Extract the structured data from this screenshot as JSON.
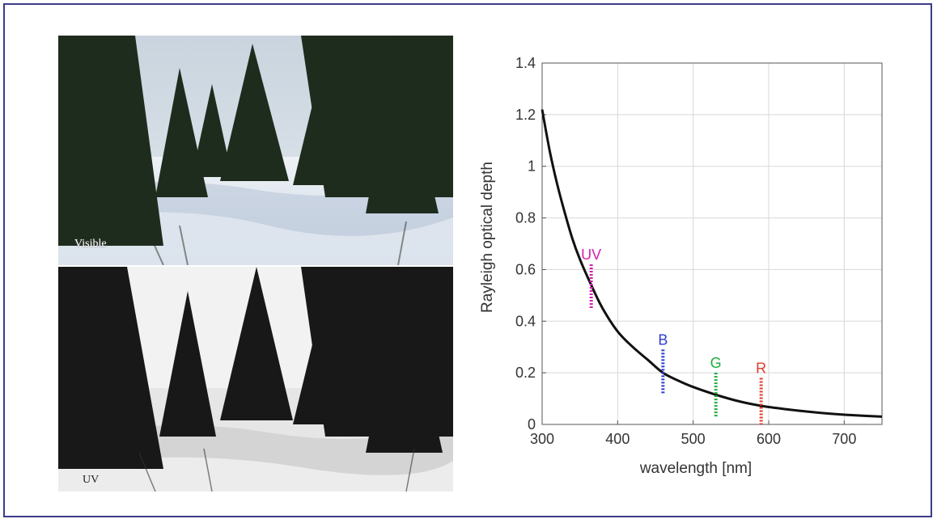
{
  "photos": [
    {
      "label": "Visible",
      "mode": "visible"
    },
    {
      "label": "UV",
      "mode": "uv"
    }
  ],
  "chart_data": {
    "type": "line",
    "title": "",
    "xlabel": "wavelength [nm]",
    "ylabel": "Rayleigh optical depth",
    "xlim": [
      300,
      750
    ],
    "ylim": [
      0,
      1.4
    ],
    "xticks": [
      300,
      400,
      500,
      600,
      700
    ],
    "yticks": [
      0,
      0.2,
      0.4,
      0.6,
      0.8,
      1,
      1.2,
      1.4
    ],
    "grid": true,
    "curve": {
      "x": [
        300,
        310,
        320,
        330,
        340,
        350,
        365,
        380,
        400,
        420,
        440,
        460,
        480,
        500,
        530,
        560,
        590,
        620,
        650,
        680,
        710,
        750
      ],
      "y": [
        1.22,
        1.06,
        0.93,
        0.82,
        0.72,
        0.64,
        0.54,
        0.45,
        0.36,
        0.3,
        0.25,
        0.2,
        0.17,
        0.145,
        0.115,
        0.09,
        0.072,
        0.06,
        0.05,
        0.042,
        0.036,
        0.03
      ],
      "color": "#111111"
    },
    "bands": [
      {
        "label": "UV",
        "x": 365,
        "y_top": 0.62,
        "y_bottom": 0.45,
        "color": "#d21fb4"
      },
      {
        "label": "B",
        "x": 460,
        "y_top": 0.29,
        "y_bottom": 0.12,
        "color": "#2c3bd0"
      },
      {
        "label": "G",
        "x": 530,
        "y_top": 0.2,
        "y_bottom": 0.03,
        "color": "#1fae3c"
      },
      {
        "label": "R",
        "x": 590,
        "y_top": 0.18,
        "y_bottom": 0.0,
        "color": "#e23a2a"
      }
    ]
  }
}
